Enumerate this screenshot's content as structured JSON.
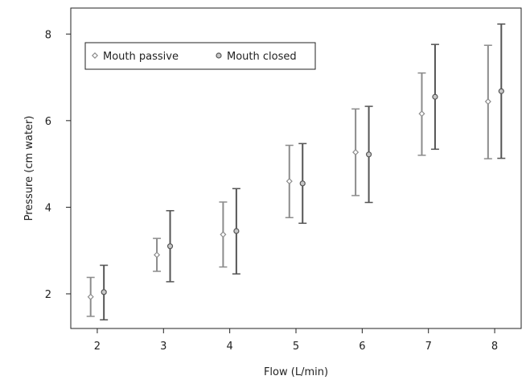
{
  "chart_data": {
    "type": "scatter",
    "xlabel": "Flow (L/min)",
    "ylabel": "Pressure (cm water)",
    "xlim": [
      1.6,
      8.4
    ],
    "ylim": [
      1.2,
      8.6
    ],
    "xticks": [
      "2",
      "3",
      "4",
      "5",
      "6",
      "7",
      "8"
    ],
    "yticks": [
      "2",
      "4",
      "6",
      "8"
    ],
    "legend_position": "top-left",
    "grid": false,
    "series": [
      {
        "name": "Mouth passive",
        "marker": "diamond",
        "color": "#8c8c8c",
        "x_offset": -0.1,
        "points": [
          {
            "x": 2,
            "y": 1.93,
            "low": 1.48,
            "high": 2.38
          },
          {
            "x": 3,
            "y": 2.9,
            "low": 2.52,
            "high": 3.28
          },
          {
            "x": 4,
            "y": 3.37,
            "low": 2.62,
            "high": 4.12
          },
          {
            "x": 5,
            "y": 4.6,
            "low": 3.76,
            "high": 5.43
          },
          {
            "x": 6,
            "y": 5.27,
            "low": 4.27,
            "high": 6.27
          },
          {
            "x": 7,
            "y": 6.16,
            "low": 5.2,
            "high": 7.1
          },
          {
            "x": 8,
            "y": 6.44,
            "low": 5.12,
            "high": 7.74
          }
        ]
      },
      {
        "name": "Mouth closed",
        "marker": "circle",
        "color": "#555555",
        "x_offset": 0.1,
        "points": [
          {
            "x": 2,
            "y": 2.04,
            "low": 1.4,
            "high": 2.66
          },
          {
            "x": 3,
            "y": 3.1,
            "low": 2.28,
            "high": 3.92
          },
          {
            "x": 4,
            "y": 3.45,
            "low": 2.46,
            "high": 4.43
          },
          {
            "x": 5,
            "y": 4.55,
            "low": 3.63,
            "high": 5.47
          },
          {
            "x": 6,
            "y": 5.22,
            "low": 4.11,
            "high": 6.33
          },
          {
            "x": 7,
            "y": 6.55,
            "low": 5.34,
            "high": 7.76
          },
          {
            "x": 8,
            "y": 6.68,
            "low": 5.13,
            "high": 8.23
          }
        ]
      }
    ]
  }
}
